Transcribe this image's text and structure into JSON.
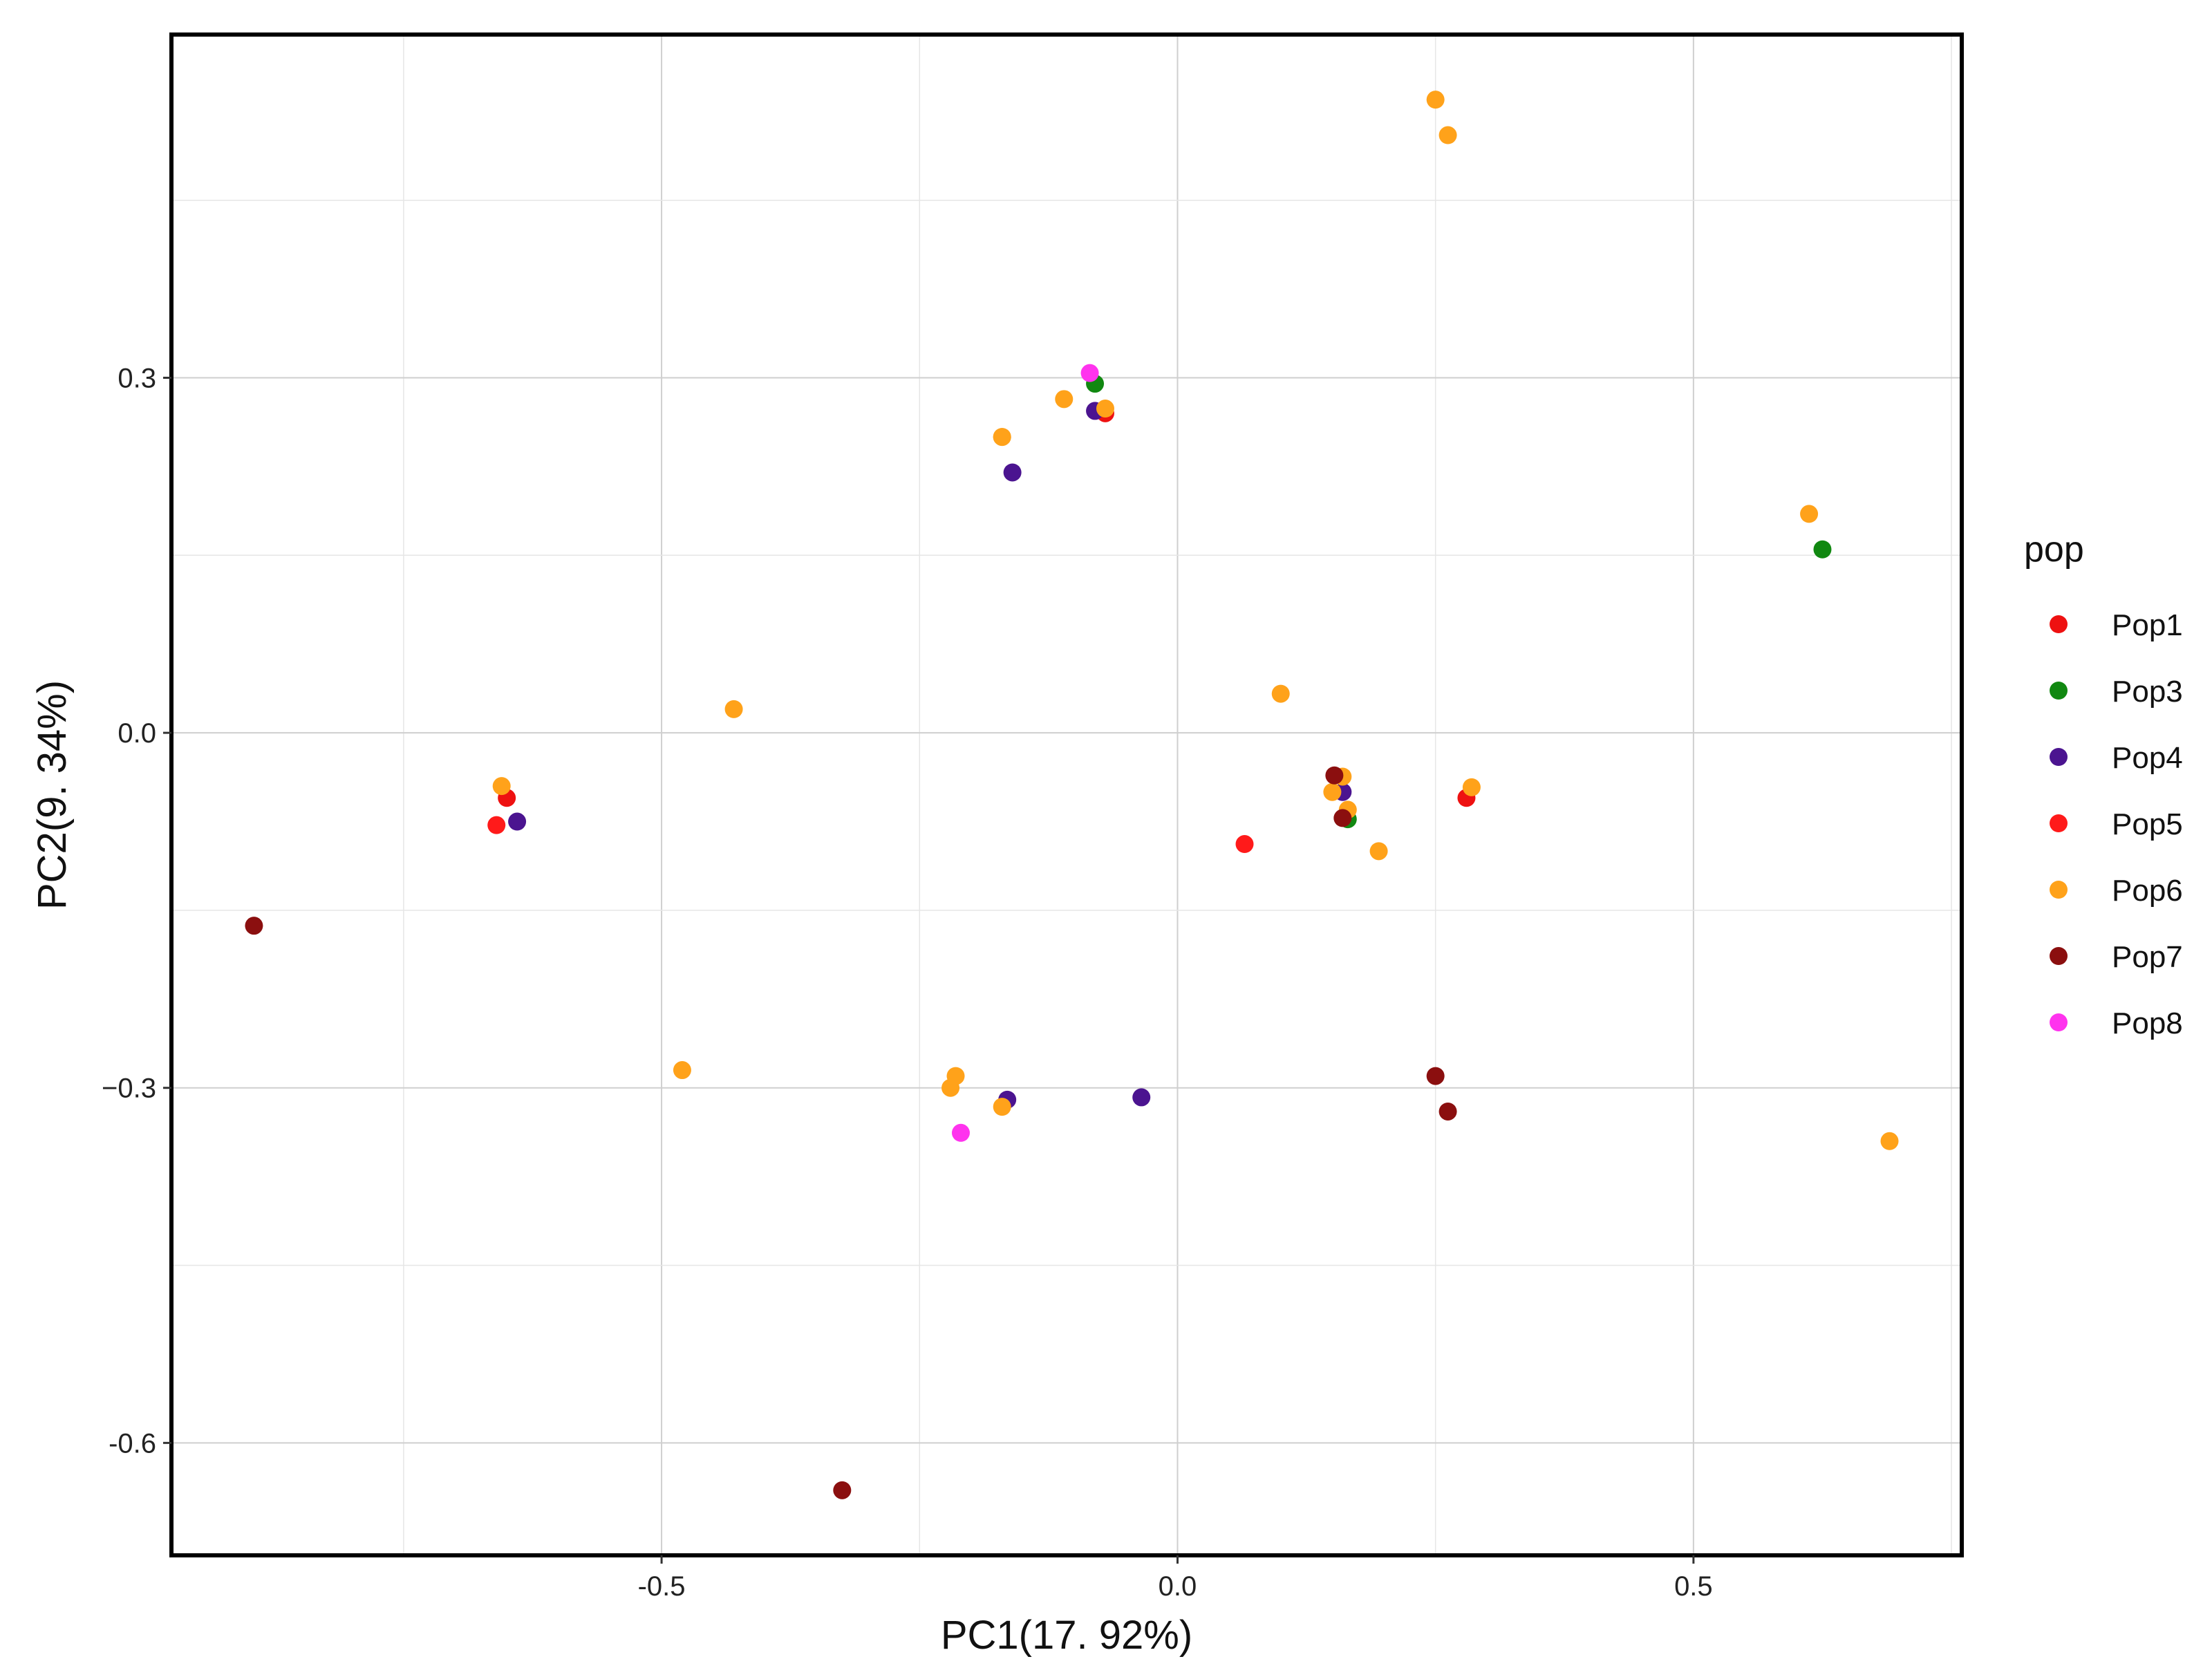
{
  "chart_data": {
    "type": "scatter",
    "xlabel": "PC1(17. 92%)",
    "ylabel": "PC2(9. 34%)",
    "xlim": [
      -0.975,
      0.76
    ],
    "ylim": [
      -0.695,
      0.59
    ],
    "x_ticks": [
      -0.5,
      0.0,
      0.5
    ],
    "x_tick_labels": [
      "-0.5",
      "0.0",
      "0.5"
    ],
    "y_ticks": [
      0.3,
      0.0,
      -0.3,
      -0.6
    ],
    "y_tick_labels": [
      "0.3",
      "0.0",
      "−0.3",
      "-0.6"
    ],
    "grid": true,
    "legend": {
      "title": "pop",
      "placement": "right"
    },
    "series": [
      {
        "name": "Pop1",
        "color": "#ee1111",
        "points": [
          [
            -0.65,
            -0.055
          ],
          [
            -0.07,
            0.27
          ],
          [
            0.28,
            -0.055
          ]
        ]
      },
      {
        "name": "Pop3",
        "color": "#118811",
        "points": [
          [
            -0.08,
            0.295
          ],
          [
            0.165,
            -0.073
          ],
          [
            0.625,
            0.155
          ]
        ]
      },
      {
        "name": "Pop4",
        "color": "#4b1490",
        "points": [
          [
            -0.64,
            -0.075
          ],
          [
            -0.16,
            0.22
          ],
          [
            -0.08,
            0.272
          ],
          [
            0.16,
            -0.05
          ],
          [
            -0.165,
            -0.31
          ],
          [
            -0.035,
            -0.308
          ]
        ]
      },
      {
        "name": "Pop5",
        "color": "#ff1a1a",
        "points": [
          [
            -0.66,
            -0.078
          ],
          [
            0.065,
            -0.094
          ]
        ]
      },
      {
        "name": "Pop6",
        "color": "#ffa21a",
        "points": [
          [
            0.25,
            0.535
          ],
          [
            0.262,
            0.505
          ],
          [
            -0.11,
            0.282
          ],
          [
            -0.17,
            0.25
          ],
          [
            -0.17,
            0.25
          ],
          [
            -0.07,
            0.274
          ],
          [
            -0.655,
            -0.045
          ],
          [
            -0.43,
            0.02
          ],
          [
            0.1,
            0.033
          ],
          [
            0.15,
            -0.05
          ],
          [
            0.16,
            -0.037
          ],
          [
            0.165,
            -0.065
          ],
          [
            0.195,
            -0.1
          ],
          [
            0.285,
            -0.046
          ],
          [
            0.612,
            0.185
          ],
          [
            -0.215,
            -0.29
          ],
          [
            -0.22,
            -0.3
          ],
          [
            -0.17,
            -0.316
          ],
          [
            -0.48,
            -0.285
          ],
          [
            0.69,
            -0.345
          ]
        ]
      },
      {
        "name": "Pop7",
        "color": "#8b0f0f",
        "points": [
          [
            -0.895,
            -0.163
          ],
          [
            0.152,
            -0.036
          ],
          [
            0.16,
            -0.072
          ],
          [
            0.25,
            -0.29
          ],
          [
            0.262,
            -0.32
          ],
          [
            -0.325,
            -0.64
          ]
        ]
      },
      {
        "name": "Pop8",
        "color": "#ff33ee",
        "points": [
          [
            -0.085,
            0.304
          ],
          [
            -0.21,
            -0.338
          ]
        ]
      }
    ]
  }
}
